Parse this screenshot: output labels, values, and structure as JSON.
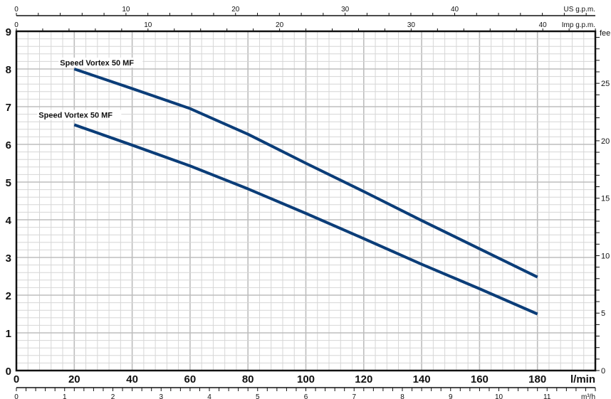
{
  "chart_data": {
    "type": "line",
    "title": "",
    "xlabel": "l/min",
    "ylabel": "",
    "xlim": [
      0,
      200
    ],
    "ylim": [
      0,
      9
    ],
    "x_ticks": [
      0,
      20,
      40,
      60,
      80,
      100,
      120,
      140,
      160,
      180
    ],
    "y_ticks": [
      0,
      1,
      2,
      3,
      4,
      5,
      6,
      7,
      8,
      9
    ],
    "grid": true,
    "series_color": "#0b3d78",
    "series": [
      {
        "name": "Speed Vortex 50 MF",
        "x": [
          20,
          40,
          60,
          80,
          100,
          120,
          140,
          160,
          180
        ],
        "y": [
          8.0,
          7.48,
          6.95,
          6.27,
          5.5,
          4.75,
          3.98,
          3.23,
          2.48
        ]
      },
      {
        "name": "Speed Vortex 50 MF",
        "x": [
          20,
          40,
          60,
          80,
          100,
          120,
          140,
          160,
          180
        ],
        "y": [
          6.52,
          5.98,
          5.43,
          4.82,
          4.17,
          3.5,
          2.82,
          2.17,
          1.5
        ]
      }
    ],
    "secondary_axes": {
      "top_us": {
        "label": "US g.p.m.",
        "ticks": [
          0,
          10,
          20,
          30,
          40
        ]
      },
      "top_imp": {
        "label": "Imp g.p.m.",
        "ticks": [
          0,
          10,
          20,
          30,
          40
        ]
      },
      "bottom_m3h": {
        "label": "m³/h",
        "ticks": [
          0,
          1,
          2,
          3,
          4,
          5,
          6,
          7,
          8,
          9,
          10,
          11
        ]
      },
      "right_feet": {
        "label": "fee",
        "ticks": [
          0,
          5,
          10,
          15,
          20,
          25
        ]
      }
    }
  }
}
